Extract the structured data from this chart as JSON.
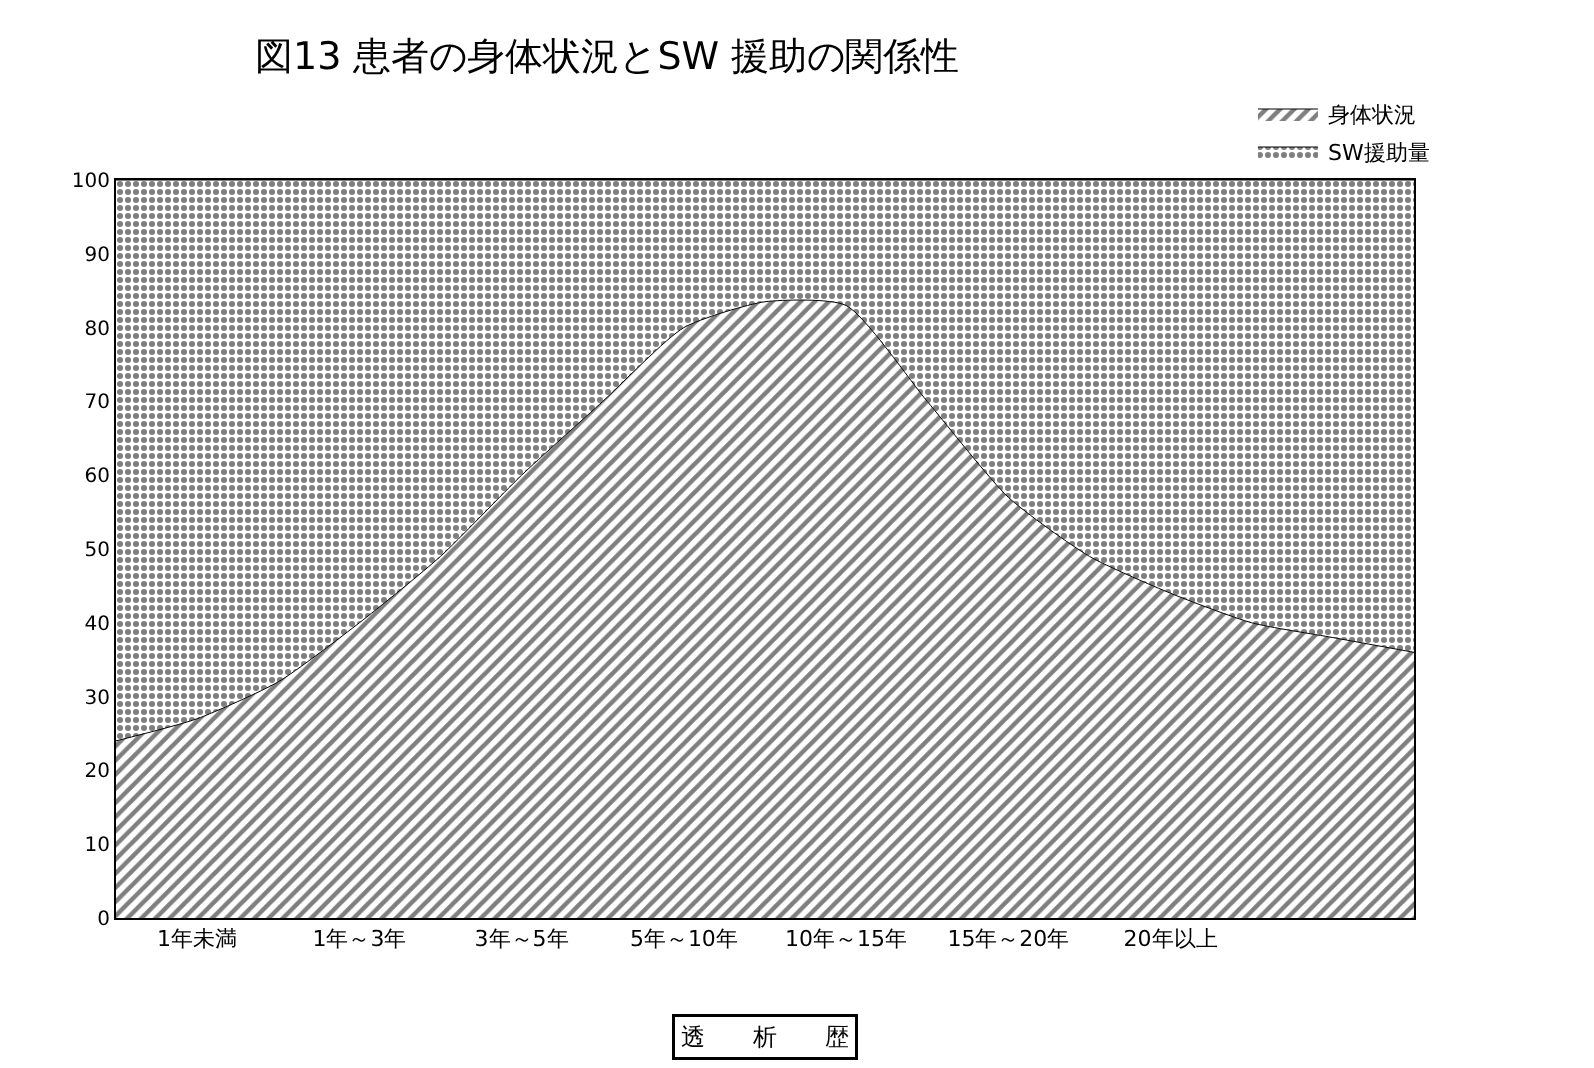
{
  "chart_data": {
    "type": "area",
    "stacked": true,
    "title": "図13 患者の身体状況とSW 援助の関係性",
    "xlabel": "透　　析　　歴",
    "categories": [
      null,
      "1年未満",
      null,
      "1年～3年",
      null,
      "3年～5年",
      null,
      "5年～10年",
      null,
      "10年～15年",
      null,
      "15年～20年",
      null,
      "20年以上",
      null,
      null,
      null
    ],
    "series": [
      {
        "name": "身体状況",
        "color": "#000000",
        "values": [
          24,
          27,
          32,
          40,
          49,
          60,
          70,
          80,
          83.5,
          83,
          70,
          57,
          49,
          44,
          40,
          38,
          36
        ]
      },
      {
        "name": "SW援助量",
        "color": "#000000",
        "values": [
          76,
          73,
          68,
          60,
          51,
          40,
          30,
          20,
          16.5,
          17,
          30,
          43,
          51,
          56,
          60,
          62,
          64
        ]
      }
    ],
    "ylim": [
      0,
      100
    ],
    "yticks": [
      0,
      10,
      20,
      30,
      40,
      50,
      60,
      70,
      80,
      90,
      100
    ],
    "legend": "top right"
  }
}
